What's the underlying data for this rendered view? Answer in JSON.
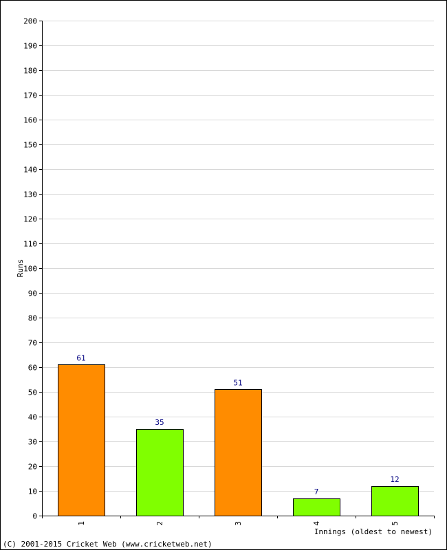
{
  "chart_data": {
    "type": "bar",
    "categories": [
      "1",
      "2",
      "3",
      "4",
      "5"
    ],
    "values": [
      61,
      35,
      51,
      7,
      12
    ],
    "bar_colors": [
      "#ff8c00",
      "#80ff00",
      "#ff8c00",
      "#80ff00",
      "#80ff00"
    ],
    "ylabel": "Runs",
    "xlabel": "Innings (oldest to newest)",
    "ylim": [
      0,
      200
    ],
    "y_ticks": [
      0,
      10,
      20,
      30,
      40,
      50,
      60,
      70,
      80,
      90,
      100,
      110,
      120,
      130,
      140,
      150,
      160,
      170,
      180,
      190,
      200
    ],
    "grid": true,
    "show_value_labels": true
  },
  "footer": {
    "copyright": "(C) 2001-2015 Cricket Web (www.cricketweb.net)"
  },
  "colors": {
    "grid": "#d8d8d8",
    "axis": "#000000",
    "value_label": "#000080",
    "bar_outline": "#000000"
  }
}
